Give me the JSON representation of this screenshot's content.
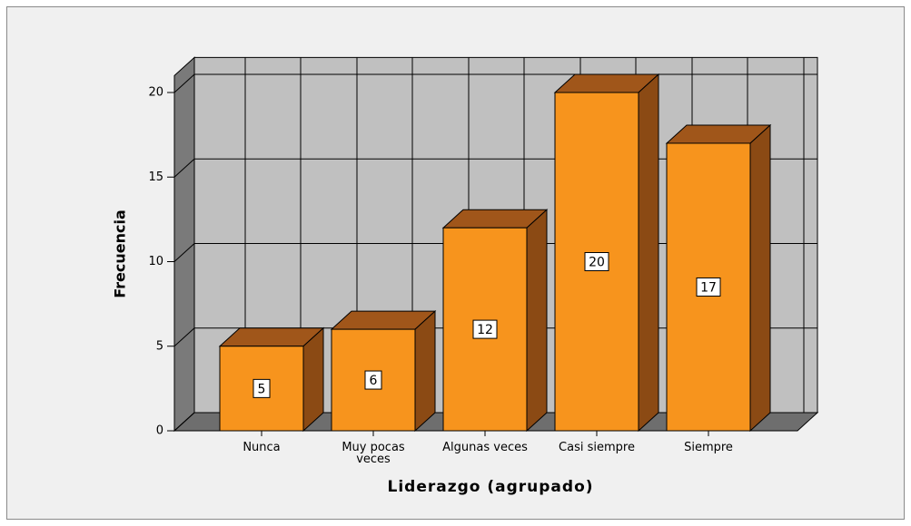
{
  "chart_data": {
    "type": "bar3d",
    "x_label": "Liderazgo (agrupado)",
    "y_label": "Frecuencia",
    "categories": [
      "Nunca",
      "Muy pocas veces",
      "Algunas veces",
      "Casi siempre",
      "Siempre"
    ],
    "values": [
      5,
      6,
      12,
      20,
      17
    ],
    "color": "#f7941d",
    "ylim": [
      0,
      21
    ],
    "yticks": [
      0,
      5,
      10,
      15,
      20
    ],
    "grid": true
  }
}
